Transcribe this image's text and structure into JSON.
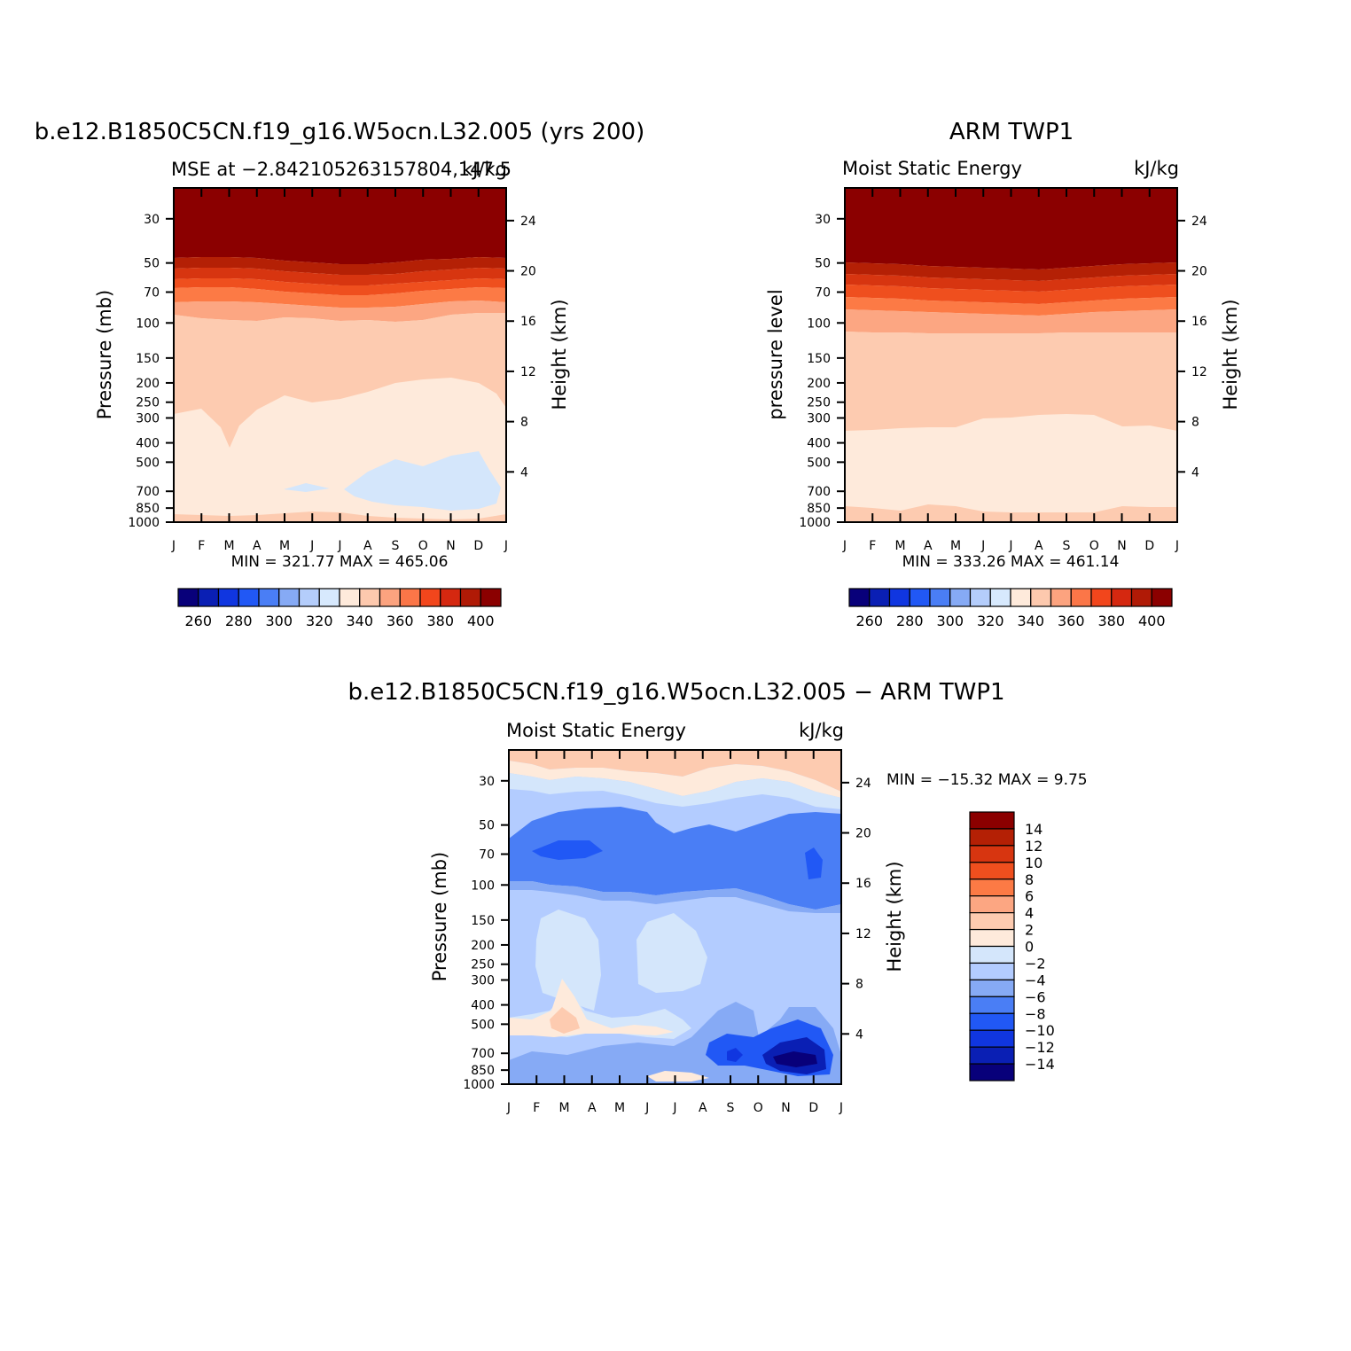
{
  "chart_data": [
    {
      "type": "contour",
      "title": "b.e12.B1850C5CN.f19_g16.W5ocn.L32.005 (yrs 200)",
      "subtitle_left": "MSE at −2.842105263157804,147.5",
      "subtitle_right": "kJ/kg",
      "ylabel": "Pressure (mb)",
      "ylabel_right": "Height (km)",
      "months": [
        "J",
        "F",
        "M",
        "A",
        "M",
        "J",
        "J",
        "A",
        "S",
        "O",
        "N",
        "D",
        "J"
      ],
      "pressure_ticks": [
        "30",
        "50",
        "70",
        "100",
        "150",
        "200",
        "250",
        "300",
        "400",
        "500",
        "700",
        "850",
        "1000"
      ],
      "pressure_values": [
        30,
        50,
        70,
        100,
        150,
        200,
        250,
        300,
        400,
        500,
        700,
        850,
        1000
      ],
      "height_ticks": [
        "24",
        "20",
        "16",
        "12",
        "8",
        "4"
      ],
      "height_values": [
        24,
        20,
        16,
        12,
        8,
        4
      ],
      "stats": "MIN = 321.77  MAX = 465.06",
      "level_colors": [
        "#8b0000",
        "#b42005",
        "#d73510",
        "#ef4f1e",
        "#fc7a45",
        "#fca682",
        "#fdcbb0",
        "#feeadb",
        "#d4e6fb",
        "#b3ccff"
      ],
      "boundaries_mb": [
        [
          55,
          53,
          53,
          54,
          56,
          58,
          59,
          59,
          58,
          56,
          55,
          54,
          55
        ],
        [
          62,
          60,
          60,
          61,
          63,
          65,
          66,
          66,
          65,
          63,
          62,
          61,
          62
        ],
        [
          70,
          68,
          68,
          69,
          71,
          74,
          75,
          75,
          74,
          71,
          70,
          69,
          70
        ],
        [
          80,
          77,
          77,
          78,
          80,
          83,
          85,
          85,
          84,
          81,
          79,
          78,
          80
        ],
        [
          95,
          100,
          102,
          103,
          100,
          102,
          106,
          104,
          106,
          102,
          98,
          92,
          95
        ],
        [
          300,
          290,
          470,
          290,
          215,
          240,
          225,
          205,
          195,
          190,
          185,
          205,
          300
        ],
        [
          1000,
          1000,
          1000,
          1000,
          1000,
          1000,
          1000,
          1000,
          1000,
          1000,
          1000,
          1000,
          1000
        ]
      ],
      "colorbar": {
        "labels": [
          "260",
          "280",
          "300",
          "320",
          "340",
          "360",
          "380",
          "400"
        ],
        "colors": [
          "#08007a",
          "#0a1fb4",
          "#1036e0",
          "#2158f5",
          "#4a7ef5",
          "#86aaf5",
          "#b4cdfb",
          "#d7e9fd",
          "#feeadb",
          "#fdc9ae",
          "#fca37f",
          "#fb7648",
          "#f2461c",
          "#d52810",
          "#b01a06",
          "#8b0000"
        ]
      }
    },
    {
      "type": "contour",
      "title": "ARM TWP1",
      "subtitle_left": "Moist Static Energy",
      "subtitle_right": "kJ/kg",
      "ylabel": "pressure level",
      "ylabel_right": "Height (km)",
      "months": [
        "J",
        "F",
        "M",
        "A",
        "M",
        "J",
        "J",
        "A",
        "S",
        "O",
        "N",
        "D",
        "J"
      ],
      "pressure_ticks": [
        "30",
        "50",
        "70",
        "100",
        "150",
        "200",
        "250",
        "300",
        "400",
        "500",
        "700",
        "850",
        "1000"
      ],
      "height_ticks": [
        "24",
        "20",
        "16",
        "12",
        "8",
        "4"
      ],
      "stats": "MIN = 333.26  MAX = 461.14",
      "colorbar": {
        "labels": [
          "260",
          "280",
          "300",
          "320",
          "340",
          "360",
          "380",
          "400"
        ]
      }
    },
    {
      "type": "contour",
      "title": "b.e12.B1850C5CN.f19_g16.W5ocn.L32.005 − ARM TWP1",
      "subtitle_left": "Moist Static Energy",
      "subtitle_right": "kJ/kg",
      "ylabel": "Pressure (mb)",
      "ylabel_right": "Height (km)",
      "months": [
        "J",
        "F",
        "M",
        "A",
        "M",
        "J",
        "J",
        "A",
        "S",
        "O",
        "N",
        "D",
        "J"
      ],
      "pressure_ticks": [
        "30",
        "50",
        "70",
        "100",
        "150",
        "200",
        "250",
        "300",
        "400",
        "500",
        "700",
        "850",
        "1000"
      ],
      "height_ticks": [
        "24",
        "20",
        "16",
        "12",
        "8",
        "4"
      ],
      "stats": "MIN = −15.32 MAX =    9.75",
      "colorbar": {
        "labels": [
          "14",
          "12",
          "10",
          "8",
          "6",
          "4",
          "2",
          "0",
          "−2",
          "−4",
          "−6",
          "−8",
          "−10",
          "−12",
          "−14"
        ],
        "colors": [
          "#8b0000",
          "#b42005",
          "#d73510",
          "#ef4f1e",
          "#fc7a45",
          "#fca682",
          "#fdcbb0",
          "#feeadb",
          "#d4e6fb",
          "#b3ccff",
          "#86aaf5",
          "#4a7ef5",
          "#2158f5",
          "#1036e0",
          "#0a1fb4",
          "#08007a"
        ]
      }
    }
  ]
}
